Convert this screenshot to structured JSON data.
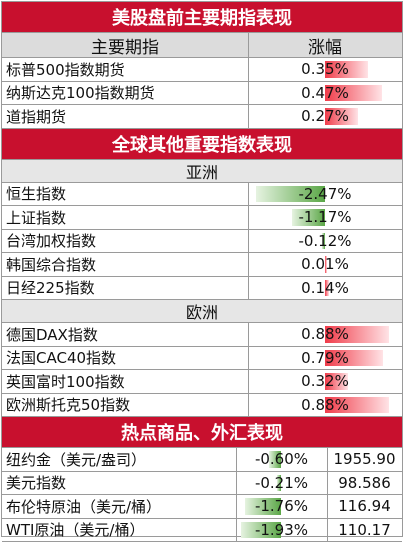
{
  "section_us": {
    "title": "美股盘前主要期指表现",
    "col_name": "主要期指",
    "col_change": "涨幅",
    "rows": [
      {
        "name": "标普500指数期货",
        "change": "0.35%",
        "pct": 0.35
      },
      {
        "name": "纳斯达克100指数期货",
        "change": "0.47%",
        "pct": 0.47
      },
      {
        "name": "道指期货",
        "change": "0.27%",
        "pct": 0.27
      }
    ]
  },
  "section_global": {
    "title": "全球其他重要指数表现",
    "asia_label": "亚洲",
    "asia_rows": [
      {
        "name": "恒生指数",
        "change": "-2.47%",
        "pct": -2.47
      },
      {
        "name": "上证指数",
        "change": "-1.17%",
        "pct": -1.17
      },
      {
        "name": "台湾加权指数",
        "change": "-0.12%",
        "pct": -0.12
      },
      {
        "name": "韩国综合指数",
        "change": "0.01%",
        "pct": 0.01
      },
      {
        "name": "日经225指数",
        "change": "0.14%",
        "pct": 0.14
      }
    ],
    "europe_label": "欧洲",
    "europe_rows": [
      {
        "name": "德国DAX指数",
        "change": "0.88%",
        "pct": 0.88
      },
      {
        "name": "法国CAC40指数",
        "change": "0.79%",
        "pct": 0.79
      },
      {
        "name": "英国富时100指数",
        "change": "0.32%",
        "pct": 0.32
      },
      {
        "name": "欧洲斯托克50指数",
        "change": "0.88%",
        "pct": 0.88
      }
    ]
  },
  "section_commodities": {
    "title": "热点商品、外汇表现",
    "rows": [
      {
        "name": "纽约金（美元/盎司）",
        "change": "-0.60%",
        "pct": -0.6,
        "price": "1955.90"
      },
      {
        "name": "美元指数",
        "change": "-0.21%",
        "pct": -0.21,
        "price": "98.586"
      },
      {
        "name": "布伦特原油（美元/桶）",
        "change": "-1.76%",
        "pct": -1.76,
        "price": "116.94"
      },
      {
        "name": "WTI原油（美元/桶）",
        "change": "-1.93%",
        "pct": -1.93,
        "price": "110.17"
      }
    ]
  },
  "colors": {
    "header_red": "#c8102e",
    "up": "#f03c4a",
    "down": "#5aa646"
  }
}
